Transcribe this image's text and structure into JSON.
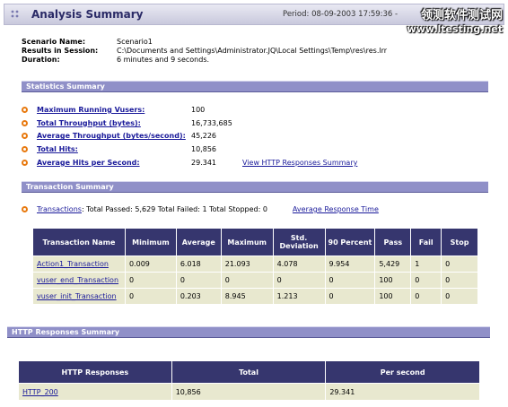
{
  "header": {
    "title": "Analysis Summary",
    "period": "Period: 08-09-2003 17:59:36 -",
    "watermark_cn": "领测软件测试网",
    "watermark_url": "www.ltesting.net"
  },
  "info": {
    "scenario_label": "Scenario Name:",
    "scenario_value": "Scenario1",
    "results_label": "Results in Session:",
    "results_value": "C:\\Documents and Settings\\Administrator.JQ\\Local Settings\\Temp\\res\\res.lrr",
    "duration_label": "Duration:",
    "duration_value": "6 minutes and 9 seconds."
  },
  "statistics": {
    "title": "Statistics Summary",
    "items": [
      {
        "label": "Maximum Running Vusers:",
        "value": "100"
      },
      {
        "label": "Total Throughput (bytes):",
        "value": "16,733,685"
      },
      {
        "label": "Average Throughput (bytes/second):",
        "value": "45,226"
      },
      {
        "label": "Total Hits:",
        "value": "10,856"
      },
      {
        "label": "Average Hits per Second:",
        "value": "29.341"
      }
    ],
    "http_link": "View HTTP Responses Summary"
  },
  "transactions": {
    "title": "Transaction Summary",
    "link": "Transactions",
    "summary": ": Total Passed: 5,629 Total Failed: 1 Total Stopped: 0",
    "response_link": "Average Response Time",
    "headers": [
      "Transaction Name",
      "Minimum",
      "Average",
      "Maximum",
      "Std. Deviation",
      "90 Percent",
      "Pass",
      "Fail",
      "Stop"
    ],
    "rows": [
      [
        "Action1_Transaction",
        "0.009",
        "6.018",
        "21.093",
        "4.078",
        "9.954",
        "5,429",
        "1",
        "0"
      ],
      [
        "vuser_end_Transaction",
        "0",
        "0",
        "0",
        "0",
        "0",
        "100",
        "0",
        "0"
      ],
      [
        "vuser_init_Transaction",
        "0",
        "0.203",
        "8.945",
        "1.213",
        "0",
        "100",
        "0",
        "0"
      ]
    ]
  },
  "http": {
    "title": "HTTP Responses Summary",
    "headers": [
      "HTTP Responses",
      "Total",
      "Per second"
    ],
    "rows": [
      [
        "HTTP_200",
        "10,856",
        "29.341"
      ]
    ]
  },
  "colors": {
    "band": "#9090c8",
    "table_header": "#36366e",
    "row_bg": "#e8e8cf",
    "bullet": "#e87a10",
    "link": "#1a1a9a"
  }
}
